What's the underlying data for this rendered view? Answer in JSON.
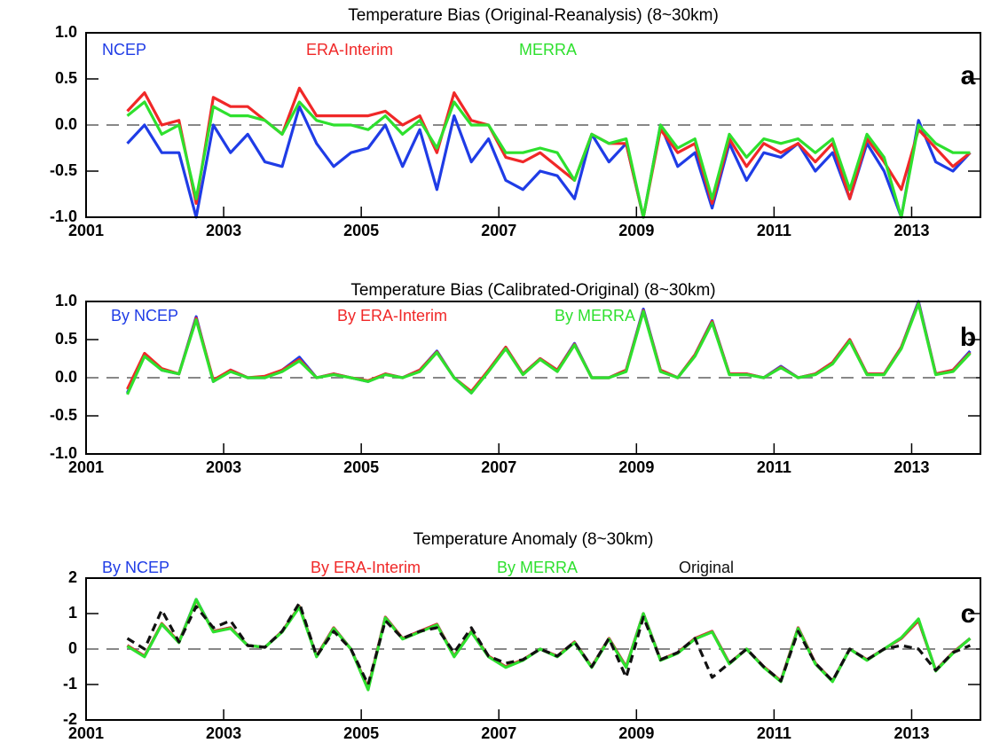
{
  "chart_data": [
    {
      "type": "line",
      "title": "Temperature Bias (Original-Reanalysis) (8~30km)",
      "label": "a",
      "x": [
        2001.6,
        2001.85,
        2002.1,
        2002.35,
        2002.6,
        2002.85,
        2003.1,
        2003.35,
        2003.6,
        2003.85,
        2004.1,
        2004.35,
        2004.6,
        2004.85,
        2005.1,
        2005.35,
        2005.6,
        2005.85,
        2006.1,
        2006.35,
        2006.6,
        2006.85,
        2007.1,
        2007.35,
        2007.6,
        2007.85,
        2008.1,
        2008.35,
        2008.6,
        2008.85,
        2009.1,
        2009.35,
        2009.6,
        2009.85,
        2010.1,
        2010.35,
        2010.6,
        2010.85,
        2011.1,
        2011.35,
        2011.6,
        2011.85,
        2012.1,
        2012.35,
        2012.6,
        2012.85,
        2013.1,
        2013.35,
        2013.6,
        2013.85
      ],
      "series": [
        {
          "name": "NCEP",
          "color": "#1f3ce6",
          "values": [
            -0.2,
            0.0,
            -0.3,
            -0.3,
            -1.0,
            0.0,
            -0.3,
            -0.1,
            -0.4,
            -0.45,
            0.2,
            -0.2,
            -0.45,
            -0.3,
            -0.25,
            0.0,
            -0.45,
            -0.05,
            -0.7,
            0.1,
            -0.4,
            -0.15,
            -0.6,
            -0.7,
            -0.5,
            -0.55,
            -0.8,
            -0.1,
            -0.4,
            -0.2,
            -1.0,
            0.0,
            -0.45,
            -0.3,
            -0.9,
            -0.2,
            -0.6,
            -0.3,
            -0.35,
            -0.2,
            -0.5,
            -0.3,
            -0.8,
            -0.2,
            -0.5,
            -1.0,
            0.05,
            -0.4,
            -0.5,
            -0.3
          ]
        },
        {
          "name": "ERA-Interim",
          "color": "#f02828",
          "values": [
            0.15,
            0.35,
            0.0,
            0.05,
            -0.85,
            0.3,
            0.2,
            0.2,
            0.05,
            -0.1,
            0.4,
            0.1,
            0.1,
            0.1,
            0.1,
            0.15,
            0.0,
            0.1,
            -0.3,
            0.35,
            0.05,
            0.0,
            -0.35,
            -0.4,
            -0.3,
            -0.45,
            -0.6,
            -0.1,
            -0.2,
            -0.2,
            -1.0,
            -0.05,
            -0.3,
            -0.2,
            -0.85,
            -0.15,
            -0.45,
            -0.2,
            -0.3,
            -0.2,
            -0.4,
            -0.2,
            -0.8,
            -0.15,
            -0.4,
            -0.7,
            -0.05,
            -0.25,
            -0.45,
            -0.3
          ]
        },
        {
          "name": "MERRA",
          "color": "#2ee02e",
          "values": [
            0.1,
            0.25,
            -0.1,
            0.0,
            -0.8,
            0.2,
            0.1,
            0.1,
            0.05,
            -0.1,
            0.25,
            0.05,
            0.0,
            0.0,
            -0.05,
            0.1,
            -0.1,
            0.05,
            -0.25,
            0.25,
            0.0,
            0.0,
            -0.3,
            -0.3,
            -0.25,
            -0.3,
            -0.6,
            -0.1,
            -0.2,
            -0.15,
            -1.0,
            0.0,
            -0.25,
            -0.15,
            -0.8,
            -0.1,
            -0.35,
            -0.15,
            -0.2,
            -0.15,
            -0.3,
            -0.15,
            -0.7,
            -0.1,
            -0.35,
            -1.0,
            0.0,
            -0.2,
            -0.3,
            -0.3
          ]
        }
      ],
      "xlim": [
        2001,
        2014
      ],
      "xticks": [
        2001,
        2003,
        2005,
        2007,
        2009,
        2011,
        2013
      ],
      "ylim": [
        -1,
        1
      ],
      "yticks": [
        {
          "value": -1,
          "label": "-1.0"
        },
        {
          "value": -0.5,
          "label": "-0.5"
        },
        {
          "value": 0,
          "label": "0.0"
        },
        {
          "value": 0.5,
          "label": "0.5"
        },
        {
          "value": 1,
          "label": "1.0"
        }
      ],
      "zero_line": true
    },
    {
      "type": "line",
      "title": "Temperature Bias (Calibrated-Original) (8~30km)",
      "label": "b",
      "x": [
        2001.6,
        2001.85,
        2002.1,
        2002.35,
        2002.6,
        2002.85,
        2003.1,
        2003.35,
        2003.6,
        2003.85,
        2004.1,
        2004.35,
        2004.6,
        2004.85,
        2005.1,
        2005.35,
        2005.6,
        2005.85,
        2006.1,
        2006.35,
        2006.6,
        2006.85,
        2007.1,
        2007.35,
        2007.6,
        2007.85,
        2008.1,
        2008.35,
        2008.6,
        2008.85,
        2009.1,
        2009.35,
        2009.6,
        2009.85,
        2010.1,
        2010.35,
        2010.6,
        2010.85,
        2011.1,
        2011.35,
        2011.6,
        2011.85,
        2012.1,
        2012.35,
        2012.6,
        2012.85,
        2013.1,
        2013.35,
        2013.6,
        2013.85
      ],
      "series": [
        {
          "name": "By NCEP",
          "color": "#1f3ce6",
          "values": [
            -0.2,
            0.3,
            0.1,
            0.05,
            0.8,
            -0.05,
            0.1,
            0.0,
            0.0,
            0.1,
            0.27,
            0.0,
            0.05,
            0.0,
            -0.05,
            0.05,
            0.0,
            0.1,
            0.35,
            0.0,
            -0.2,
            0.1,
            0.4,
            0.05,
            0.25,
            0.1,
            0.45,
            0.0,
            0.0,
            0.1,
            0.9,
            0.1,
            0.0,
            0.3,
            0.75,
            0.05,
            0.05,
            0.0,
            0.15,
            0.0,
            0.05,
            0.2,
            0.5,
            0.05,
            0.05,
            0.4,
            1.0,
            0.05,
            0.1,
            0.35
          ]
        },
        {
          "name": "By ERA-Interim",
          "color": "#f02828",
          "values": [
            -0.15,
            0.32,
            0.12,
            0.05,
            0.78,
            -0.03,
            0.1,
            0.0,
            0.02,
            0.1,
            0.24,
            0.0,
            0.05,
            0.0,
            -0.04,
            0.05,
            0.0,
            0.1,
            0.34,
            0.0,
            -0.18,
            0.1,
            0.4,
            0.05,
            0.25,
            0.1,
            0.44,
            0.0,
            0.0,
            0.1,
            0.88,
            0.1,
            0.0,
            0.3,
            0.74,
            0.05,
            0.05,
            0.0,
            0.14,
            0.0,
            0.05,
            0.2,
            0.5,
            0.05,
            0.05,
            0.4,
            0.98,
            0.05,
            0.1,
            0.33
          ]
        },
        {
          "name": "By MERRA",
          "color": "#2ee02e",
          "values": [
            -0.22,
            0.28,
            0.1,
            0.05,
            0.76,
            -0.05,
            0.08,
            0.0,
            0.0,
            0.08,
            0.22,
            0.0,
            0.04,
            0.0,
            -0.05,
            0.04,
            0.0,
            0.08,
            0.33,
            0.0,
            -0.2,
            0.08,
            0.38,
            0.04,
            0.24,
            0.08,
            0.43,
            0.0,
            0.0,
            0.08,
            0.87,
            0.08,
            0.0,
            0.28,
            0.72,
            0.04,
            0.04,
            0.0,
            0.13,
            0.0,
            0.04,
            0.18,
            0.48,
            0.04,
            0.04,
            0.38,
            0.97,
            0.04,
            0.08,
            0.32
          ]
        }
      ],
      "xlim": [
        2001,
        2014
      ],
      "xticks": [
        2001,
        2003,
        2005,
        2007,
        2009,
        2011,
        2013
      ],
      "ylim": [
        -1,
        1
      ],
      "yticks": [
        {
          "value": -1,
          "label": "-1.0"
        },
        {
          "value": -0.5,
          "label": "-0.5"
        },
        {
          "value": 0,
          "label": "0.0"
        },
        {
          "value": 0.5,
          "label": "0.5"
        },
        {
          "value": 1,
          "label": "1.0"
        }
      ],
      "zero_line": true
    },
    {
      "type": "line",
      "title": "Temperature Anomaly (8~30km)",
      "label": "c",
      "x": [
        2001.6,
        2001.85,
        2002.1,
        2002.35,
        2002.6,
        2002.85,
        2003.1,
        2003.35,
        2003.6,
        2003.85,
        2004.1,
        2004.35,
        2004.6,
        2004.85,
        2005.1,
        2005.35,
        2005.6,
        2005.85,
        2006.1,
        2006.35,
        2006.6,
        2006.85,
        2007.1,
        2007.35,
        2007.6,
        2007.85,
        2008.1,
        2008.35,
        2008.6,
        2008.85,
        2009.1,
        2009.35,
        2009.6,
        2009.85,
        2010.1,
        2010.35,
        2010.6,
        2010.85,
        2011.1,
        2011.35,
        2011.6,
        2011.85,
        2012.1,
        2012.35,
        2012.6,
        2012.85,
        2013.1,
        2013.35,
        2013.6,
        2013.85
      ],
      "series": [
        {
          "name": "By NCEP",
          "color": "#1f3ce6",
          "values": [
            0.1,
            -0.2,
            0.7,
            0.2,
            1.4,
            0.5,
            0.6,
            0.1,
            0.05,
            0.5,
            1.2,
            -0.2,
            0.6,
            0.0,
            -1.1,
            0.9,
            0.3,
            0.5,
            0.7,
            -0.2,
            0.5,
            -0.2,
            -0.5,
            -0.3,
            0.0,
            -0.2,
            0.2,
            -0.5,
            0.3,
            -0.5,
            1.0,
            -0.3,
            -0.1,
            0.3,
            0.5,
            -0.4,
            0.0,
            -0.5,
            -0.9,
            0.6,
            -0.4,
            -0.9,
            0.0,
            -0.3,
            0.0,
            0.3,
            0.8,
            -0.6,
            -0.1,
            0.3
          ]
        },
        {
          "name": "By ERA-Interim",
          "color": "#f02828",
          "values": [
            0.1,
            -0.2,
            0.72,
            0.2,
            1.38,
            0.5,
            0.6,
            0.1,
            0.05,
            0.5,
            1.2,
            -0.2,
            0.6,
            0.0,
            -1.1,
            0.9,
            0.3,
            0.5,
            0.7,
            -0.2,
            0.5,
            -0.2,
            -0.5,
            -0.3,
            0.0,
            -0.2,
            0.2,
            -0.5,
            0.3,
            -0.5,
            1.0,
            -0.3,
            -0.1,
            0.3,
            0.5,
            -0.4,
            0.0,
            -0.5,
            -0.9,
            0.6,
            -0.4,
            -0.9,
            0.0,
            -0.3,
            0.0,
            0.3,
            0.8,
            -0.6,
            -0.1,
            0.3
          ]
        },
        {
          "name": "By MERRA",
          "color": "#2ee02e",
          "values": [
            0.08,
            -0.22,
            0.7,
            0.18,
            1.4,
            0.48,
            0.58,
            0.1,
            0.05,
            0.48,
            1.18,
            -0.22,
            0.58,
            0.0,
            -1.15,
            0.88,
            0.28,
            0.48,
            0.68,
            -0.22,
            0.48,
            -0.22,
            -0.52,
            -0.32,
            0.0,
            -0.22,
            0.18,
            -0.52,
            0.28,
            -0.52,
            1.0,
            -0.32,
            -0.12,
            0.28,
            0.48,
            -0.42,
            0.0,
            -0.52,
            -0.92,
            0.58,
            -0.42,
            -0.92,
            0.0,
            -0.32,
            0.0,
            0.32,
            0.85,
            -0.62,
            -0.12,
            0.3
          ]
        },
        {
          "name": "Original",
          "color": "#111111",
          "dashed": true,
          "values": [
            0.3,
            0.0,
            1.1,
            0.2,
            1.2,
            0.6,
            0.8,
            0.1,
            0.05,
            0.5,
            1.3,
            -0.2,
            0.5,
            0.0,
            -1.0,
            0.8,
            0.3,
            0.5,
            0.6,
            -0.1,
            0.6,
            -0.2,
            -0.4,
            -0.3,
            0.0,
            -0.2,
            0.2,
            -0.5,
            0.3,
            -0.8,
            0.9,
            -0.3,
            -0.1,
            0.3,
            -0.8,
            -0.4,
            0.0,
            -0.5,
            -0.9,
            0.5,
            -0.4,
            -0.9,
            0.0,
            -0.3,
            0.0,
            0.1,
            0.0,
            -0.6,
            -0.1,
            0.1
          ]
        }
      ],
      "xlim": [
        2001,
        2014
      ],
      "xticks": [
        2001,
        2003,
        2005,
        2007,
        2009,
        2011,
        2013
      ],
      "ylim": [
        -2,
        2
      ],
      "yticks": [
        -2,
        -1,
        0,
        1,
        2
      ],
      "zero_line": true
    }
  ]
}
